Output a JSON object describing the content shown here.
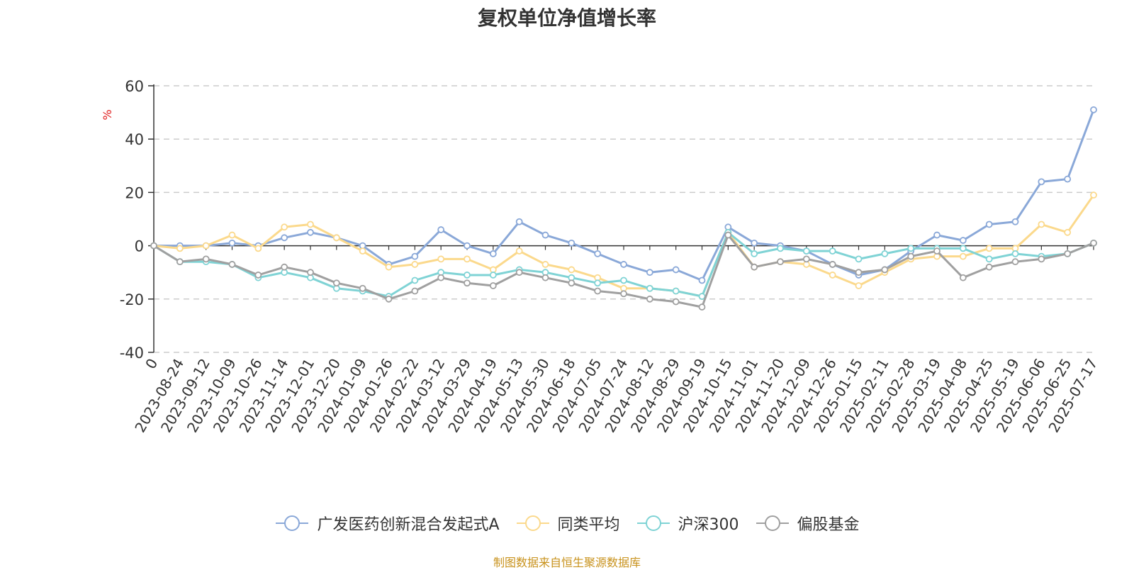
{
  "title": "复权单位净值增长率",
  "source_note": "制图数据来自恒生聚源数据库",
  "chart_data": {
    "type": "line",
    "title": "复权单位净值增长率",
    "ylabel": "%",
    "ylim": [
      -40,
      60
    ],
    "yticks": [
      -40,
      -20,
      0,
      20,
      40,
      60
    ],
    "grid": true,
    "legend_position": "bottom",
    "categories": [
      "0",
      "2023-08-24",
      "2023-09-12",
      "2023-10-09",
      "2023-10-26",
      "2023-11-14",
      "2023-12-01",
      "2023-12-20",
      "2024-01-09",
      "2024-01-26",
      "2024-02-22",
      "2024-03-12",
      "2024-03-29",
      "2024-04-19",
      "2024-05-13",
      "2024-05-30",
      "2024-06-18",
      "2024-07-05",
      "2024-07-24",
      "2024-08-12",
      "2024-08-29",
      "2024-09-19",
      "2024-10-15",
      "2024-11-01",
      "2024-11-20",
      "2024-12-09",
      "2024-12-26",
      "2025-01-15",
      "2025-02-11",
      "2025-02-28",
      "2025-03-19",
      "2025-04-08",
      "2025-04-25",
      "2025-05-19",
      "2025-06-06",
      "2025-06-25",
      "2025-07-17"
    ],
    "series": [
      {
        "name": "广发医药创新混合发起式A",
        "color": "#8aa8d8",
        "values": [
          0,
          0,
          0,
          1,
          0,
          3,
          5,
          3,
          0,
          -7,
          -4,
          6,
          0,
          -3,
          9,
          4,
          1,
          -3,
          -7,
          -10,
          -9,
          -13,
          7,
          1,
          0,
          -2,
          -7,
          -11,
          -9,
          -2,
          4,
          2,
          8,
          9,
          24,
          25,
          51
        ]
      },
      {
        "name": "同类平均",
        "color": "#fbd98c",
        "values": [
          0,
          -1,
          0,
          4,
          -1,
          7,
          8,
          3,
          -2,
          -8,
          -7,
          -5,
          -5,
          -9,
          -2,
          -7,
          -9,
          -12,
          -16,
          -16,
          -17,
          -19,
          5,
          -8,
          -6,
          -7,
          -11,
          -15,
          -10,
          -5,
          -4,
          -4,
          -1,
          -1,
          8,
          5,
          19
        ]
      },
      {
        "name": "沪深300",
        "color": "#7fd3d5",
        "values": [
          0,
          -6,
          -6,
          -7,
          -12,
          -10,
          -12,
          -16,
          -17,
          -19,
          -13,
          -10,
          -11,
          -11,
          -9,
          -10,
          -12,
          -14,
          -13,
          -16,
          -17,
          -19,
          5,
          -3,
          -1,
          -2,
          -2,
          -5,
          -3,
          -1,
          -1,
          -1,
          -5,
          -3,
          -4,
          -3,
          1
        ]
      },
      {
        "name": "偏股基金",
        "color": "#a0a0a0",
        "values": [
          0,
          -6,
          -5,
          -7,
          -11,
          -8,
          -10,
          -14,
          -16,
          -20,
          -17,
          -12,
          -14,
          -15,
          -10,
          -12,
          -14,
          -17,
          -18,
          -20,
          -21,
          -23,
          4,
          -8,
          -6,
          -5,
          -7,
          -10,
          -9,
          -4,
          -2,
          -12,
          -8,
          -6,
          -5,
          -3,
          1
        ]
      }
    ]
  }
}
